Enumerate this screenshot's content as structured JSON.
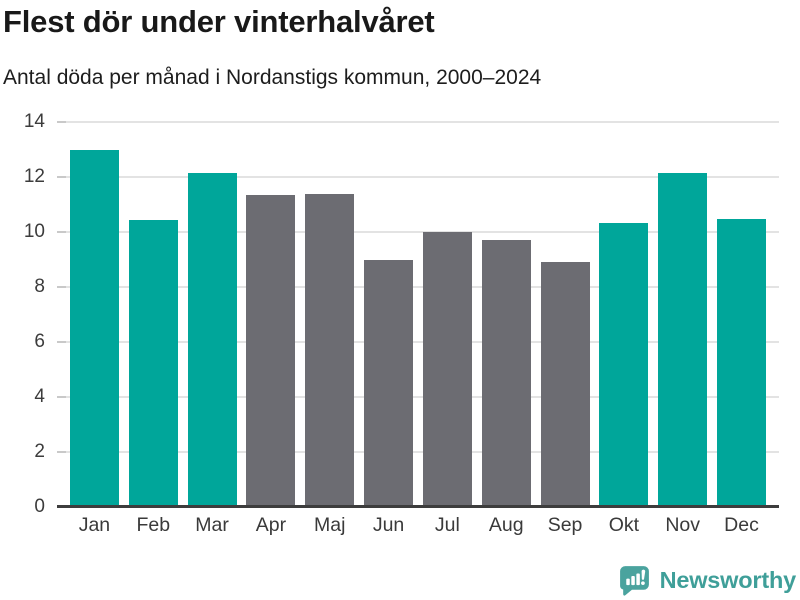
{
  "header": {
    "title": "Flest dör under vinterhalvåret",
    "subtitle": "Antal döda per månad i Nordanstigs kommun, 2000–2024"
  },
  "chart_data": {
    "type": "bar",
    "title": "Flest dör under vinterhalvåret",
    "subtitle": "Antal döda per månad i Nordanstigs kommun, 2000–2024",
    "categories": [
      "Jan",
      "Feb",
      "Mar",
      "Apr",
      "Maj",
      "Jun",
      "Jul",
      "Aug",
      "Sep",
      "Okt",
      "Nov",
      "Dec"
    ],
    "values": [
      13.0,
      10.44,
      12.16,
      11.36,
      11.4,
      9.0,
      10.0,
      9.72,
      8.92,
      10.32,
      12.16,
      10.48
    ],
    "bar_colors": [
      "teal",
      "teal",
      "teal",
      "gray",
      "gray",
      "gray",
      "gray",
      "gray",
      "gray",
      "teal",
      "teal",
      "teal"
    ],
    "colors": {
      "teal": "#00a69a",
      "gray": "#6c6c72"
    },
    "xlabel": "",
    "ylabel": "",
    "ylim": [
      0,
      14
    ],
    "yticks": [
      0,
      2,
      4,
      6,
      8,
      10,
      12,
      14
    ],
    "grid": true,
    "legend": "none"
  },
  "footer": {
    "brand": "Newsworthy",
    "brand_color": "#3f9f99",
    "icon_color": "#4aa39e",
    "icon": "bar-chart-speech-bubble-icon"
  }
}
